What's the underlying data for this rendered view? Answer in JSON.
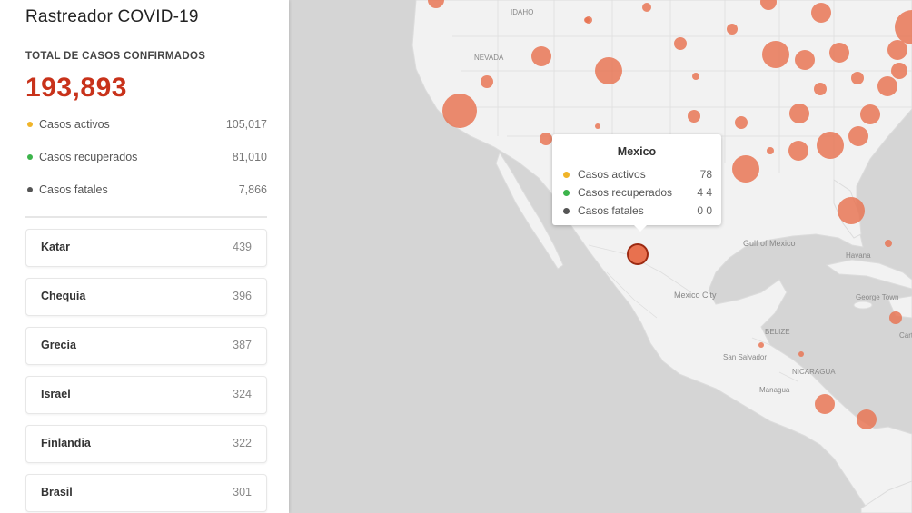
{
  "app": {
    "title": "Rastreador COVID-19"
  },
  "summary": {
    "total_label": "TOTAL DE CASOS CONFIRMADOS",
    "total_value": "193,893",
    "stats": [
      {
        "label": "Casos activos",
        "value": "105,017",
        "color": "#f0b429"
      },
      {
        "label": "Casos recuperados",
        "value": "81,010",
        "color": "#3cb44b"
      },
      {
        "label": "Casos fatales",
        "value": "7,866",
        "color": "#555555"
      }
    ]
  },
  "countries": [
    {
      "name": "Katar",
      "count": "439"
    },
    {
      "name": "Chequia",
      "count": "396"
    },
    {
      "name": "Grecia",
      "count": "387"
    },
    {
      "name": "Israel",
      "count": "324"
    },
    {
      "name": "Finlandia",
      "count": "322"
    },
    {
      "name": "Brasil",
      "count": "301"
    }
  ],
  "tooltip": {
    "title": "Mexico",
    "rows": [
      {
        "label": "Casos activos",
        "value": "78",
        "color": "#f0b429"
      },
      {
        "label": "Casos recuperados",
        "value": "4 4",
        "color": "#3cb44b"
      },
      {
        "label": "Casos fatales",
        "value": "0 0",
        "color": "#555555"
      }
    ]
  },
  "map_labels": {
    "idaho": "IDAHO",
    "nevada": "NEVADA",
    "gulf": "Gulf of Mexico",
    "mexico_city": "Mexico City",
    "havana": "Havana",
    "belize": "BELIZE",
    "san_salvador": "San Salvador",
    "nicaragua": "NICARAGUA",
    "managua": "Managua",
    "george_town": "George Town",
    "cart": "Cart"
  },
  "colors": {
    "accent": "#c8321a",
    "bubble": "#e8714f",
    "land": "#f2f2f2",
    "water": "#d5d5d5"
  }
}
